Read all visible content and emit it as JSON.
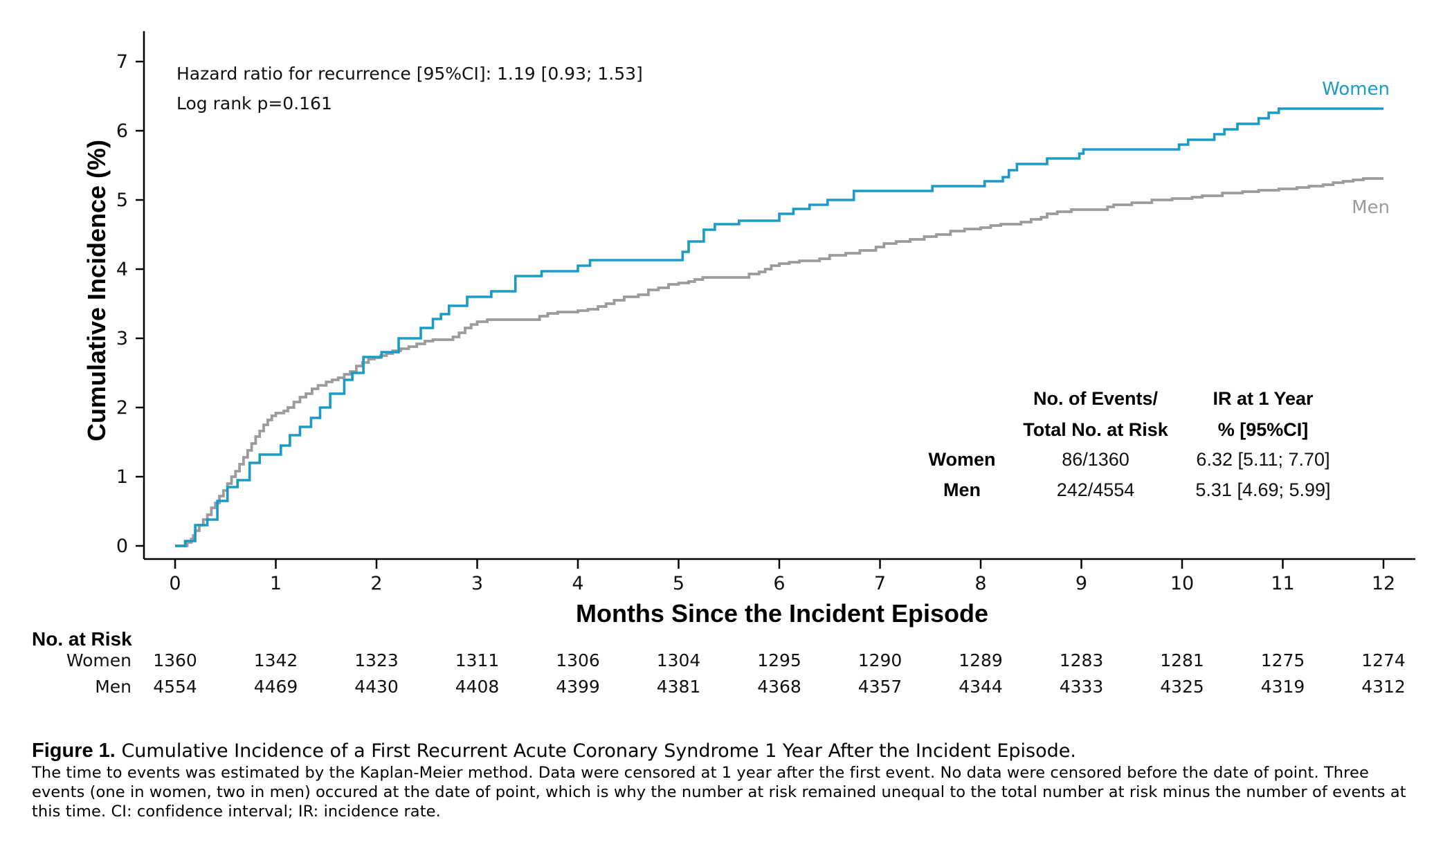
{
  "chart_data": {
    "type": "line",
    "step": true,
    "xlabel": "Months Since the Incident Episode",
    "ylabel": "Cumulative Incidence (%)",
    "xlim": [
      0,
      12.3
    ],
    "ylim": [
      0,
      7.4
    ],
    "xticks": [
      0,
      1,
      2,
      3,
      4,
      5,
      6,
      7,
      8,
      9,
      10,
      11,
      12
    ],
    "yticks": [
      0,
      1,
      2,
      3,
      4,
      5,
      6,
      7
    ],
    "grid": false,
    "colors": {
      "women": "#1a9bc7",
      "men": "#9b9b9b"
    },
    "annotations": [
      "Hazard ratio for recurrence [95%CI]: 1.19 [0.93; 1.53]",
      "Log rank p=0.161"
    ],
    "series": [
      {
        "name": "Women",
        "color": "#1a9bc7",
        "points": [
          [
            0,
            0
          ],
          [
            0.1,
            0
          ],
          [
            0.1,
            0.07
          ],
          [
            0.18,
            0.07
          ],
          [
            0.2,
            0.3
          ],
          [
            0.3,
            0.3
          ],
          [
            0.32,
            0.38
          ],
          [
            0.38,
            0.38
          ],
          [
            0.42,
            0.65
          ],
          [
            0.5,
            0.65
          ],
          [
            0.52,
            0.85
          ],
          [
            0.6,
            0.85
          ],
          [
            0.62,
            0.95
          ],
          [
            0.72,
            0.95
          ],
          [
            0.74,
            1.2
          ],
          [
            0.82,
            1.2
          ],
          [
            0.84,
            1.32
          ],
          [
            1.03,
            1.32
          ],
          [
            1.05,
            1.45
          ],
          [
            1.12,
            1.45
          ],
          [
            1.14,
            1.6
          ],
          [
            1.22,
            1.6
          ],
          [
            1.24,
            1.72
          ],
          [
            1.33,
            1.72
          ],
          [
            1.35,
            1.85
          ],
          [
            1.42,
            1.85
          ],
          [
            1.44,
            2.0
          ],
          [
            1.52,
            2.0
          ],
          [
            1.54,
            2.2
          ],
          [
            1.66,
            2.2
          ],
          [
            1.68,
            2.4
          ],
          [
            1.74,
            2.4
          ],
          [
            1.76,
            2.5
          ],
          [
            1.85,
            2.5
          ],
          [
            1.87,
            2.73
          ],
          [
            2.03,
            2.73
          ],
          [
            2.05,
            2.8
          ],
          [
            2.2,
            2.8
          ],
          [
            2.22,
            3.0
          ],
          [
            2.42,
            3.0
          ],
          [
            2.44,
            3.15
          ],
          [
            2.52,
            3.15
          ],
          [
            2.56,
            3.28
          ],
          [
            2.62,
            3.28
          ],
          [
            2.64,
            3.35
          ],
          [
            2.68,
            3.35
          ],
          [
            2.72,
            3.47
          ],
          [
            2.88,
            3.47
          ],
          [
            2.9,
            3.6
          ],
          [
            3.12,
            3.6
          ],
          [
            3.14,
            3.68
          ],
          [
            3.36,
            3.68
          ],
          [
            3.38,
            3.9
          ],
          [
            3.62,
            3.9
          ],
          [
            3.64,
            3.97
          ],
          [
            3.98,
            3.97
          ],
          [
            4.0,
            4.05
          ],
          [
            4.1,
            4.05
          ],
          [
            4.12,
            4.13
          ],
          [
            5.0,
            4.13
          ],
          [
            5.04,
            4.25
          ],
          [
            5.08,
            4.25
          ],
          [
            5.1,
            4.4
          ],
          [
            5.2,
            4.4
          ],
          [
            5.25,
            4.57
          ],
          [
            5.3,
            4.57
          ],
          [
            5.36,
            4.65
          ],
          [
            5.56,
            4.65
          ],
          [
            5.6,
            4.7
          ],
          [
            5.96,
            4.7
          ],
          [
            6.0,
            4.8
          ],
          [
            6.12,
            4.8
          ],
          [
            6.14,
            4.87
          ],
          [
            6.28,
            4.87
          ],
          [
            6.3,
            4.93
          ],
          [
            6.46,
            4.93
          ],
          [
            6.48,
            5.0
          ],
          [
            6.72,
            5.0
          ],
          [
            6.74,
            5.13
          ],
          [
            7.5,
            5.13
          ],
          [
            7.52,
            5.2
          ],
          [
            8.02,
            5.2
          ],
          [
            8.04,
            5.27
          ],
          [
            8.2,
            5.27
          ],
          [
            8.22,
            5.33
          ],
          [
            8.26,
            5.33
          ],
          [
            8.28,
            5.43
          ],
          [
            8.34,
            5.43
          ],
          [
            8.36,
            5.52
          ],
          [
            8.64,
            5.52
          ],
          [
            8.66,
            5.6
          ],
          [
            8.96,
            5.6
          ],
          [
            8.98,
            5.67
          ],
          [
            9.0,
            5.67
          ],
          [
            9.02,
            5.73
          ],
          [
            9.95,
            5.73
          ],
          [
            9.97,
            5.8
          ],
          [
            10.04,
            5.8
          ],
          [
            10.06,
            5.87
          ],
          [
            10.3,
            5.87
          ],
          [
            10.32,
            5.95
          ],
          [
            10.4,
            5.95
          ],
          [
            10.42,
            6.02
          ],
          [
            10.52,
            6.02
          ],
          [
            10.55,
            6.1
          ],
          [
            10.74,
            6.1
          ],
          [
            10.76,
            6.18
          ],
          [
            10.84,
            6.18
          ],
          [
            10.86,
            6.26
          ],
          [
            10.94,
            6.26
          ],
          [
            10.96,
            6.32
          ],
          [
            12.0,
            6.32
          ]
        ]
      },
      {
        "name": "Men",
        "color": "#9b9b9b",
        "points": [
          [
            0,
            0
          ],
          [
            0.1,
            0
          ],
          [
            0.12,
            0.05
          ],
          [
            0.16,
            0.1
          ],
          [
            0.18,
            0.15
          ],
          [
            0.2,
            0.22
          ],
          [
            0.24,
            0.3
          ],
          [
            0.28,
            0.38
          ],
          [
            0.32,
            0.45
          ],
          [
            0.36,
            0.55
          ],
          [
            0.4,
            0.62
          ],
          [
            0.44,
            0.72
          ],
          [
            0.48,
            0.8
          ],
          [
            0.52,
            0.9
          ],
          [
            0.56,
            1.0
          ],
          [
            0.6,
            1.08
          ],
          [
            0.64,
            1.18
          ],
          [
            0.68,
            1.28
          ],
          [
            0.72,
            1.38
          ],
          [
            0.76,
            1.48
          ],
          [
            0.8,
            1.58
          ],
          [
            0.84,
            1.66
          ],
          [
            0.88,
            1.75
          ],
          [
            0.92,
            1.82
          ],
          [
            0.96,
            1.88
          ],
          [
            1.0,
            1.92
          ],
          [
            1.08,
            1.95
          ],
          [
            1.12,
            2.0
          ],
          [
            1.18,
            2.08
          ],
          [
            1.24,
            2.15
          ],
          [
            1.3,
            2.2
          ],
          [
            1.36,
            2.27
          ],
          [
            1.42,
            2.32
          ],
          [
            1.5,
            2.37
          ],
          [
            1.56,
            2.4
          ],
          [
            1.62,
            2.43
          ],
          [
            1.68,
            2.48
          ],
          [
            1.74,
            2.52
          ],
          [
            1.8,
            2.6
          ],
          [
            1.86,
            2.65
          ],
          [
            1.92,
            2.7
          ],
          [
            1.98,
            2.72
          ],
          [
            2.04,
            2.75
          ],
          [
            2.1,
            2.78
          ],
          [
            2.16,
            2.82
          ],
          [
            2.24,
            2.85
          ],
          [
            2.32,
            2.88
          ],
          [
            2.4,
            2.92
          ],
          [
            2.48,
            2.96
          ],
          [
            2.56,
            2.98
          ],
          [
            2.7,
            2.98
          ],
          [
            2.76,
            3.02
          ],
          [
            2.82,
            3.08
          ],
          [
            2.88,
            3.15
          ],
          [
            2.94,
            3.2
          ],
          [
            3.0,
            3.24
          ],
          [
            3.1,
            3.27
          ],
          [
            3.56,
            3.27
          ],
          [
            3.62,
            3.32
          ],
          [
            3.7,
            3.36
          ],
          [
            3.8,
            3.38
          ],
          [
            4.0,
            3.4
          ],
          [
            4.1,
            3.42
          ],
          [
            4.2,
            3.46
          ],
          [
            4.28,
            3.5
          ],
          [
            4.36,
            3.55
          ],
          [
            4.46,
            3.6
          ],
          [
            4.6,
            3.63
          ],
          [
            4.7,
            3.7
          ],
          [
            4.8,
            3.73
          ],
          [
            4.9,
            3.78
          ],
          [
            5.0,
            3.8
          ],
          [
            5.1,
            3.82
          ],
          [
            5.16,
            3.85
          ],
          [
            5.24,
            3.88
          ],
          [
            5.6,
            3.88
          ],
          [
            5.7,
            3.93
          ],
          [
            5.8,
            3.96
          ],
          [
            5.86,
            4.0
          ],
          [
            5.92,
            4.05
          ],
          [
            6.0,
            4.08
          ],
          [
            6.1,
            4.1
          ],
          [
            6.2,
            4.12
          ],
          [
            6.4,
            4.15
          ],
          [
            6.5,
            4.2
          ],
          [
            6.66,
            4.23
          ],
          [
            6.8,
            4.27
          ],
          [
            6.96,
            4.32
          ],
          [
            7.04,
            4.37
          ],
          [
            7.16,
            4.4
          ],
          [
            7.3,
            4.43
          ],
          [
            7.44,
            4.47
          ],
          [
            7.56,
            4.5
          ],
          [
            7.7,
            4.55
          ],
          [
            7.84,
            4.58
          ],
          [
            8.0,
            4.6
          ],
          [
            8.1,
            4.63
          ],
          [
            8.2,
            4.65
          ],
          [
            8.4,
            4.68
          ],
          [
            8.5,
            4.72
          ],
          [
            8.6,
            4.75
          ],
          [
            8.66,
            4.8
          ],
          [
            8.76,
            4.83
          ],
          [
            8.9,
            4.86
          ],
          [
            9.2,
            4.86
          ],
          [
            9.26,
            4.9
          ],
          [
            9.32,
            4.93
          ],
          [
            9.5,
            4.96
          ],
          [
            9.7,
            5.0
          ],
          [
            9.9,
            5.02
          ],
          [
            10.1,
            5.04
          ],
          [
            10.2,
            5.06
          ],
          [
            10.4,
            5.1
          ],
          [
            10.6,
            5.12
          ],
          [
            10.76,
            5.14
          ],
          [
            10.96,
            5.16
          ],
          [
            11.14,
            5.18
          ],
          [
            11.26,
            5.2
          ],
          [
            11.4,
            5.22
          ],
          [
            11.5,
            5.25
          ],
          [
            11.6,
            5.27
          ],
          [
            11.7,
            5.29
          ],
          [
            11.8,
            5.31
          ],
          [
            12.0,
            5.31
          ]
        ]
      }
    ],
    "summary_table": {
      "headers": [
        "No. of Events/",
        "Total No. at Risk",
        "IR at 1 Year",
        "% [95%CI]"
      ],
      "rows": [
        {
          "group": "Women",
          "events": "86/1360",
          "ir": "6.32 [5.11; 7.70]"
        },
        {
          "group": "Men",
          "events": "242/4554",
          "ir": "5.31 [4.69; 5.99]"
        }
      ]
    },
    "risk_table": {
      "title": "No. at Risk",
      "rows": [
        {
          "label": "Women",
          "values": [
            "1360",
            "1342",
            "1323",
            "1311",
            "1306",
            "1304",
            "1295",
            "1290",
            "1289",
            "1283",
            "1281",
            "1275",
            "1274"
          ]
        },
        {
          "label": "Men",
          "values": [
            "4554",
            "4469",
            "4430",
            "4408",
            "4399",
            "4381",
            "4368",
            "4357",
            "4344",
            "4333",
            "4325",
            "4319",
            "4312"
          ]
        }
      ]
    }
  },
  "caption": {
    "label": "Figure 1.",
    "title": "Cumulative Incidence of a First Recurrent Acute Coronary Syndrome 1 Year After the Incident Episode.",
    "body": "The time to events was estimated by the Kaplan-Meier method. Data were censored at 1 year after the first event. No data were censored before the date of point. Three events (one in women, two in men) occured at the date of point, which is why the number at risk remained unequal to the total number at risk minus the number of events at this time. CI: confidence interval; IR: incidence rate."
  }
}
